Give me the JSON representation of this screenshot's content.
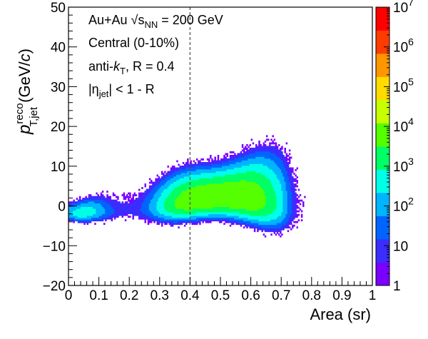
{
  "chart_data": {
    "type": "heatmap",
    "title": "",
    "xlabel": "Area (sr)",
    "ylabel": {
      "main": "p",
      "sup": "reco",
      "sub": "T,jet",
      "unit_open": " (GeV/",
      "unit_c": "c",
      "unit_close": ")"
    },
    "xlim": [
      0,
      1
    ],
    "ylim": [
      -20,
      50
    ],
    "x_ticks": [
      "0",
      "0.1",
      "0.2",
      "0.3",
      "0.4",
      "0.5",
      "0.6",
      "0.7",
      "0.8",
      "0.9",
      "1"
    ],
    "y_ticks": [
      "50",
      "40",
      "30",
      "20",
      "10",
      "0",
      "−10",
      "−20"
    ],
    "z_scale": "log",
    "zlim": [
      1,
      10000000
    ],
    "z_ticks": [
      {
        "base": "10",
        "exp": "7"
      },
      {
        "base": "10",
        "exp": "6"
      },
      {
        "base": "10",
        "exp": "5"
      },
      {
        "base": "10",
        "exp": "4"
      },
      {
        "base": "10",
        "exp": "3"
      },
      {
        "base": "10",
        "exp": "2"
      },
      {
        "base": "10",
        "exp": ""
      },
      {
        "base": "1",
        "exp": ""
      }
    ],
    "colormap": [
      "#7a00ff",
      "#3b2dff",
      "#0064ff",
      "#00b4ff",
      "#00ffe6",
      "#00ff64",
      "#55ff00",
      "#c8ff00",
      "#ffdc00",
      "#ff9600",
      "#ff3c00",
      "#ff0000"
    ],
    "reference_line": {
      "x": 0.4,
      "style": "dashed"
    },
    "legend": "right",
    "grid": false,
    "annotations": {
      "line1": {
        "a": "Au+Au ",
        "sqrt": "√",
        "s": "s",
        "sub": "NN",
        "b": " = 200 GeV"
      },
      "line2": "Central (0-10%)",
      "line3": {
        "a": "anti-",
        "k": "k",
        "sub": "T",
        "b": ", R = 0.4"
      },
      "line4": {
        "a": "|η",
        "sub": "jet",
        "b": "| < 1 - R"
      }
    }
  }
}
